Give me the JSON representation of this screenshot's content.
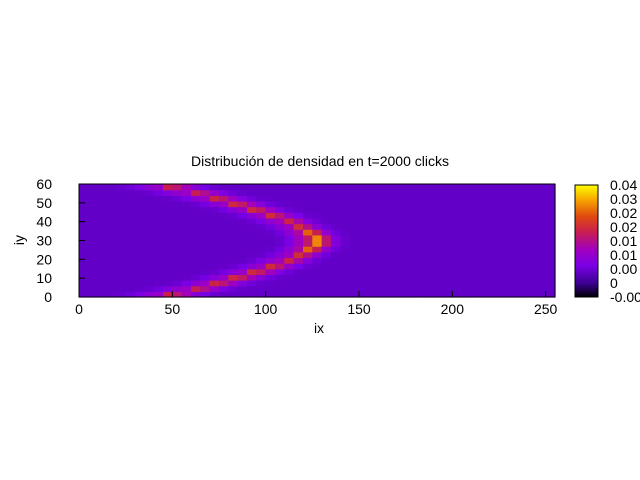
{
  "chart_data": {
    "type": "heatmap",
    "title": "Distribución de densidad en t=2000 clicks",
    "xlabel": "ix",
    "ylabel": "iy",
    "xlim": [
      0,
      255
    ],
    "ylim": [
      0,
      60
    ],
    "x_ticks": [
      "0",
      "50",
      "100",
      "150",
      "200",
      "250"
    ],
    "y_ticks": [
      "0",
      "10",
      "20",
      "30",
      "40",
      "50",
      "60"
    ],
    "colorbar": {
      "palette": "gnuplot pm3d (black-blue-purple-red-orange-yellow)",
      "range": [
        -0.005,
        0.04
      ],
      "tick_labels": [
        "-0.00",
        "0",
        "0.00",
        "0.01",
        "0.01",
        "0.02",
        "0.02",
        "0.03",
        "0.04"
      ]
    },
    "grid": false,
    "legend": "none",
    "description_of_values": "Curved arc of density from (ix~40,iy~60) through peak at (ix~125,iy~30) to (ix~40,iy~0); background ~0.005",
    "peak": {
      "ix": 125,
      "iy": 30,
      "value": 0.035
    },
    "background_value": 0.005
  }
}
